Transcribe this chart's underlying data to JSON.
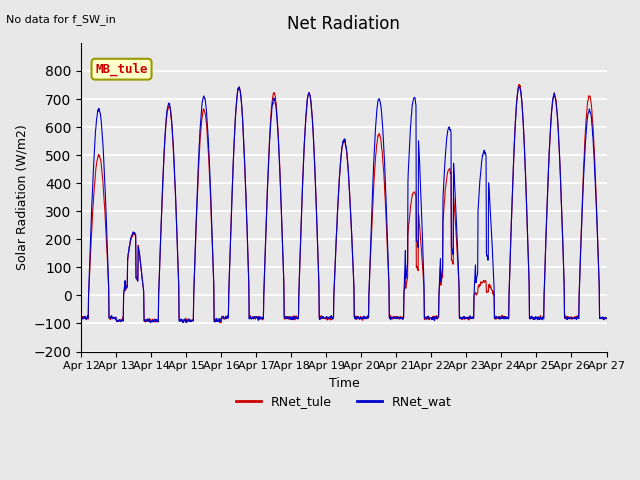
{
  "title": "Net Radiation",
  "subtitle": "No data for f_SW_in",
  "ylabel": "Solar Radiation (W/m2)",
  "xlabel": "Time",
  "ylim": [
    -200,
    900
  ],
  "yticks": [
    -200,
    -100,
    0,
    100,
    200,
    300,
    400,
    500,
    600,
    700,
    800
  ],
  "bg_color": "#e8e8e8",
  "plot_bg_color": "#e8e8e8",
  "grid_color": "white",
  "line_color_tule": "#cc0000",
  "line_color_wat": "#0000cc",
  "legend_label_tule": "RNet_tule",
  "legend_label_wat": "RNet_wat",
  "mb_tule_box_color": "#ffffcc",
  "mb_tule_border_color": "#999900",
  "mb_tule_text_color": "#cc0000",
  "n_days": 15,
  "start_day": 12,
  "points_per_day": 96,
  "day_params": [
    [
      500,
      665,
      false,
      false
    ],
    [
      220,
      225,
      true,
      true
    ],
    [
      675,
      685,
      false,
      false
    ],
    [
      660,
      710,
      false,
      false
    ],
    [
      740,
      740,
      false,
      false
    ],
    [
      720,
      700,
      false,
      false
    ],
    [
      720,
      720,
      false,
      false
    ],
    [
      550,
      555,
      false,
      false
    ],
    [
      575,
      700,
      false,
      false
    ],
    [
      370,
      705,
      true,
      true
    ],
    [
      450,
      600,
      true,
      true
    ],
    [
      50,
      515,
      true,
      true
    ],
    [
      750,
      745,
      false,
      false
    ],
    [
      715,
      715,
      false,
      false
    ],
    [
      710,
      660,
      false,
      false
    ]
  ]
}
